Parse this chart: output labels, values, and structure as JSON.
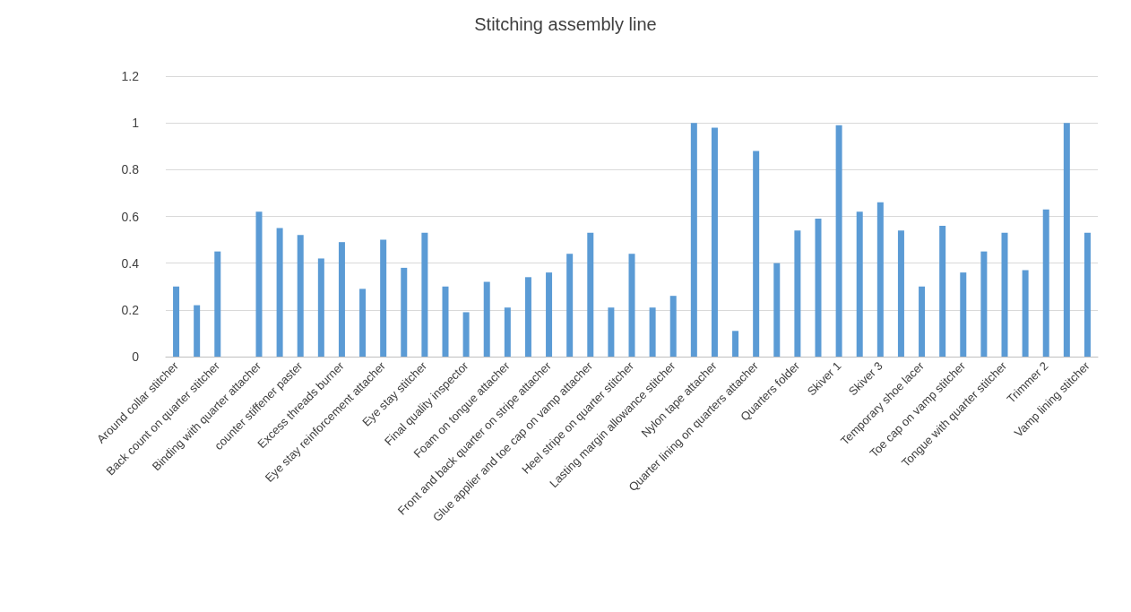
{
  "chart_data": {
    "type": "bar",
    "title": "Stitching assembly line",
    "categories": [
      "Around collar stitcher",
      null,
      "Back count on quarter stitcher",
      null,
      "Binding with quarter attacher",
      null,
      "counter stiffener paster",
      null,
      "Excess threads burner",
      null,
      "Eye stay reinforcement attacher",
      null,
      "Eye stay stitcher",
      null,
      "Final quality inspector",
      null,
      "Foam on tongue attacher",
      null,
      "Front and back quarter on stripe attacher",
      null,
      "Glue applier and toe cap on vamp attacher",
      null,
      "Heel stripe on quarter stitcher",
      null,
      "Lasting margin allowance stitcher",
      null,
      "Nylon tape attacher",
      null,
      "Quarter lining on quarters attacher",
      null,
      "Quarters folder",
      null,
      "Skiver 1",
      null,
      "Skiver 3",
      null,
      "Temporary shoe lacer",
      null,
      "Toe cap on vamp stitcher",
      null,
      "Tongue with quarter stitcher",
      null,
      "Trimmer 2",
      null,
      "Vamp lining stitcher"
    ],
    "values": [
      0.3,
      0.22,
      0.45,
      0,
      0.62,
      0.55,
      0.52,
      0.42,
      0.49,
      0.29,
      0.5,
      0.38,
      0.53,
      0.3,
      0.19,
      0.32,
      0.21,
      0.34,
      0.36,
      0.44,
      0.53,
      0.21,
      0.44,
      0.21,
      0.26,
      1.0,
      0.98,
      0.11,
      0.88,
      0.4,
      0.54,
      0.59,
      0.99,
      0.62,
      0.66,
      0.54,
      0.3,
      0.56,
      0.36,
      0.45,
      0.53,
      0.37,
      0.63,
      1.0,
      0.53
    ],
    "color": "#5b9bd5",
    "ylim": [
      0,
      1.2
    ],
    "yticks": [
      0,
      0.2,
      0.4,
      0.6,
      0.8,
      1,
      1.2
    ],
    "grid": true
  }
}
